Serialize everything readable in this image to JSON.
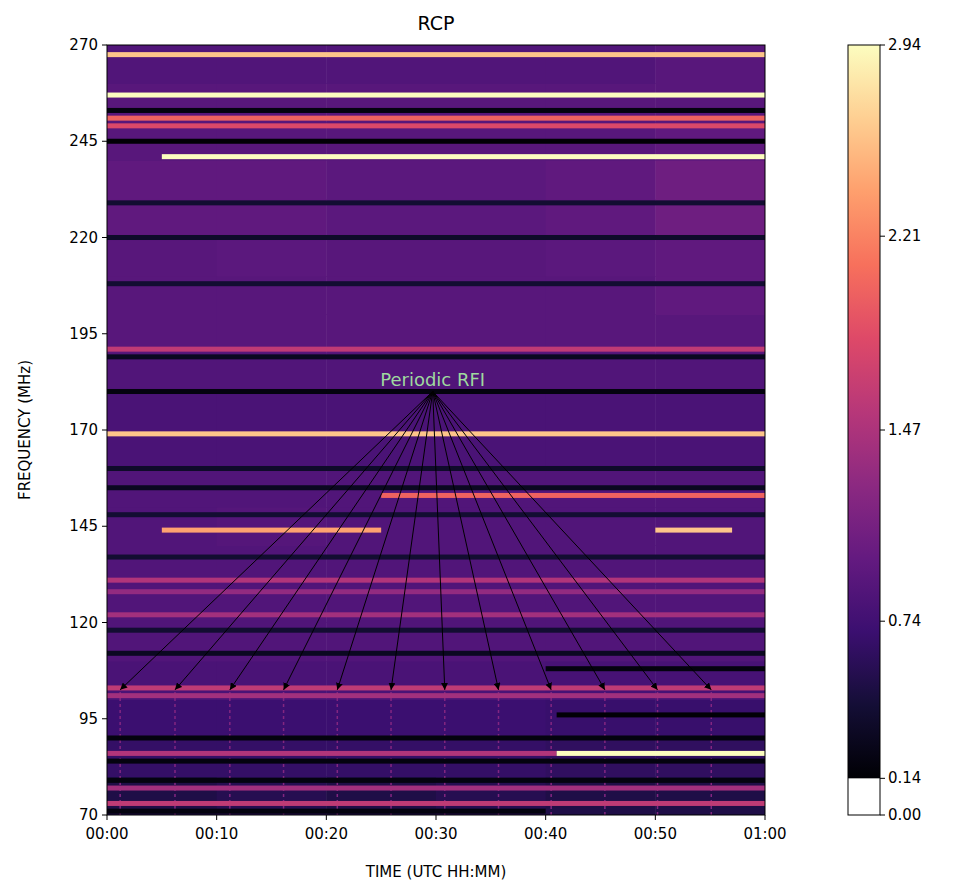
{
  "chart_data": {
    "type": "heatmap",
    "title": "RCP",
    "x_label": "TIME (UTC HH:MM)",
    "y_label": "FREQUENCY (MHz)",
    "xlim": [
      0,
      60
    ],
    "xticks": [
      {
        "value": 0,
        "label": "00:00"
      },
      {
        "value": 10,
        "label": "00:10"
      },
      {
        "value": 20,
        "label": "00:20"
      },
      {
        "value": 30,
        "label": "00:30"
      },
      {
        "value": 40,
        "label": "00:40"
      },
      {
        "value": 50,
        "label": "00:50"
      },
      {
        "value": 60,
        "label": "01:00"
      }
    ],
    "ylim": [
      70,
      270
    ],
    "yticks": [
      70,
      95,
      120,
      145,
      170,
      195,
      220,
      245,
      270
    ],
    "cell_x": [
      0,
      10,
      20,
      30,
      40,
      50,
      60
    ],
    "cell_y": [
      70,
      80,
      90,
      100,
      110,
      120,
      130,
      140,
      150,
      160,
      170,
      180,
      190,
      200,
      210,
      220,
      230,
      240,
      250,
      260,
      270
    ],
    "cells": [
      [
        0.5,
        0.55,
        0.5,
        0.55,
        0.5,
        0.5
      ],
      [
        0.65,
        0.65,
        0.65,
        0.65,
        0.62,
        0.62
      ],
      [
        0.7,
        0.7,
        0.7,
        0.7,
        0.68,
        0.68
      ],
      [
        0.8,
        0.8,
        0.8,
        0.8,
        0.78,
        0.78
      ],
      [
        0.85,
        0.85,
        0.85,
        0.85,
        0.85,
        0.85
      ],
      [
        0.85,
        0.85,
        0.85,
        0.85,
        0.85,
        0.85
      ],
      [
        0.85,
        0.85,
        0.85,
        0.85,
        0.85,
        0.85
      ],
      [
        0.85,
        0.88,
        0.85,
        0.85,
        0.85,
        0.85
      ],
      [
        0.85,
        0.85,
        0.85,
        0.85,
        0.85,
        0.85
      ],
      [
        0.8,
        0.8,
        0.8,
        0.8,
        0.8,
        0.8
      ],
      [
        0.8,
        0.8,
        0.8,
        0.8,
        0.8,
        0.8
      ],
      [
        0.85,
        0.85,
        0.85,
        0.85,
        0.85,
        0.85
      ],
      [
        0.9,
        0.9,
        0.9,
        0.9,
        0.9,
        0.9
      ],
      [
        0.9,
        0.9,
        0.9,
        0.9,
        0.9,
        0.95
      ],
      [
        0.9,
        0.92,
        0.9,
        0.9,
        0.92,
        0.95
      ],
      [
        0.95,
        0.95,
        0.92,
        0.92,
        0.95,
        1.05
      ],
      [
        0.95,
        0.95,
        0.92,
        0.92,
        0.95,
        1.05
      ],
      [
        0.9,
        0.9,
        0.9,
        0.9,
        0.9,
        0.95
      ],
      [
        0.9,
        0.9,
        0.9,
        0.9,
        0.9,
        0.9
      ],
      [
        0.85,
        0.85,
        0.85,
        0.85,
        0.85,
        0.9
      ]
    ],
    "rfi_lines": [
      {
        "freq": 267.5,
        "start": 0,
        "end": 60,
        "value": 2.6
      },
      {
        "freq": 257,
        "start": 0,
        "end": 60,
        "value": 2.94
      },
      {
        "freq": 253,
        "start": 0,
        "end": 60,
        "value": 0.2
      },
      {
        "freq": 251,
        "start": 0,
        "end": 60,
        "value": 2.0
      },
      {
        "freq": 249,
        "start": 0,
        "end": 60,
        "value": 1.8
      },
      {
        "freq": 245,
        "start": 0,
        "end": 60,
        "value": 0.15
      },
      {
        "freq": 241,
        "start": 5,
        "end": 60,
        "value": 2.94
      },
      {
        "freq": 229,
        "start": 0,
        "end": 60,
        "value": 0.4
      },
      {
        "freq": 220,
        "start": 0,
        "end": 60,
        "value": 0.35
      },
      {
        "freq": 208,
        "start": 0,
        "end": 60,
        "value": 0.4
      },
      {
        "freq": 191,
        "start": 0,
        "end": 60,
        "value": 1.6
      },
      {
        "freq": 189,
        "start": 0,
        "end": 60,
        "value": 0.3
      },
      {
        "freq": 180,
        "start": 0,
        "end": 60,
        "value": 0.2
      },
      {
        "freq": 169,
        "start": 0,
        "end": 60,
        "value": 2.6
      },
      {
        "freq": 160,
        "start": 0,
        "end": 60,
        "value": 0.35
      },
      {
        "freq": 155,
        "start": 0,
        "end": 60,
        "value": 0.3
      },
      {
        "freq": 153,
        "start": 25,
        "end": 60,
        "value": 2.0
      },
      {
        "freq": 148,
        "start": 0,
        "end": 60,
        "value": 0.4
      },
      {
        "freq": 144,
        "start": 5,
        "end": 25,
        "value": 2.4
      },
      {
        "freq": 144,
        "start": 50,
        "end": 57,
        "value": 2.6
      },
      {
        "freq": 137,
        "start": 0,
        "end": 60,
        "value": 0.4
      },
      {
        "freq": 131,
        "start": 0,
        "end": 60,
        "value": 1.5
      },
      {
        "freq": 128,
        "start": 0,
        "end": 60,
        "value": 1.3
      },
      {
        "freq": 122,
        "start": 0,
        "end": 60,
        "value": 1.4
      },
      {
        "freq": 118,
        "start": 0,
        "end": 60,
        "value": 0.4
      },
      {
        "freq": 112,
        "start": 0,
        "end": 60,
        "value": 0.3
      },
      {
        "freq": 108,
        "start": 40,
        "end": 60,
        "value": 0.2
      },
      {
        "freq": 103,
        "start": 0,
        "end": 60,
        "value": 1.6
      },
      {
        "freq": 101,
        "start": 0,
        "end": 60,
        "value": 1.4
      },
      {
        "freq": 96,
        "start": 41,
        "end": 60,
        "value": 0.15
      },
      {
        "freq": 90,
        "start": 0,
        "end": 60,
        "value": 0.2
      },
      {
        "freq": 86,
        "start": 0,
        "end": 41,
        "value": 1.5
      },
      {
        "freq": 86,
        "start": 41,
        "end": 60,
        "value": 2.94
      },
      {
        "freq": 84,
        "start": 0,
        "end": 60,
        "value": 0.2
      },
      {
        "freq": 79,
        "start": 0,
        "end": 60,
        "value": 0.2
      },
      {
        "freq": 77,
        "start": 0,
        "end": 60,
        "value": 1.4
      },
      {
        "freq": 73,
        "start": 0,
        "end": 60,
        "value": 1.6
      },
      {
        "freq": 71,
        "start": 0,
        "end": 40,
        "value": 0.2
      }
    ],
    "periodic_rfi": {
      "times": [
        1.2,
        6.2,
        11.2,
        16.1,
        21.0,
        25.9,
        30.8,
        35.7,
        40.5,
        45.4,
        50.2,
        55.1
      ],
      "freq_range": [
        70,
        103
      ],
      "value": 1.2
    },
    "annotations": [
      {
        "text": "Periodic RFI",
        "x": 29.7,
        "y": 180,
        "target_y": 102.5
      }
    ],
    "colorbar": {
      "range": [
        0,
        2.94
      ],
      "vmin": 0.14,
      "ticks": [
        {
          "value": 0,
          "label": "0.00"
        },
        0.14,
        0.74,
        1.47,
        2.21,
        2.94
      ]
    }
  }
}
